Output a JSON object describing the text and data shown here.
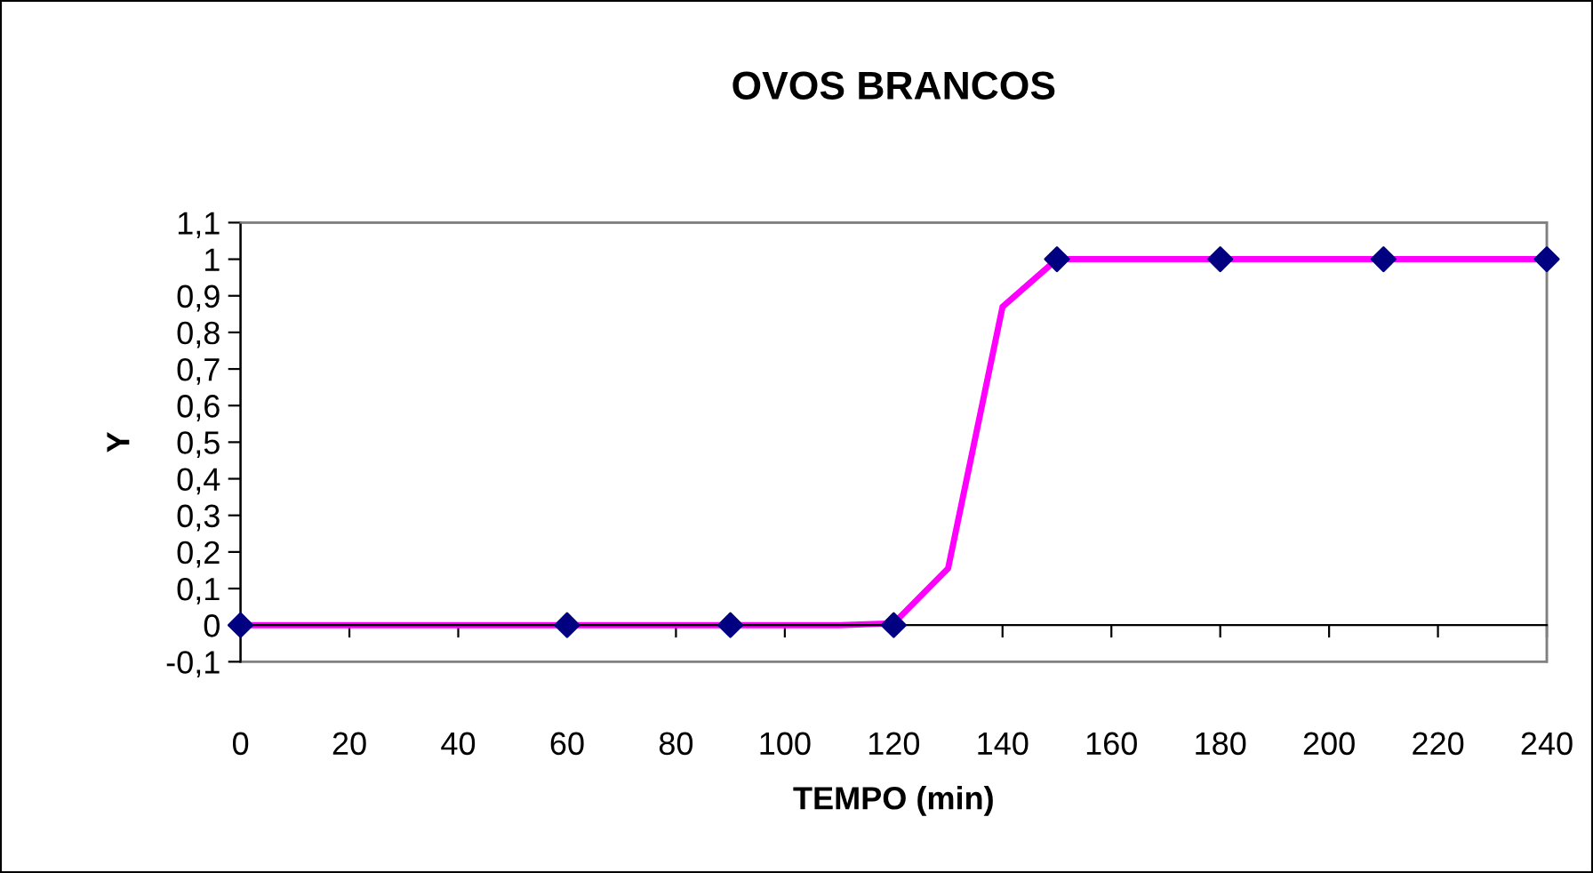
{
  "chart_data": {
    "type": "line",
    "title": "OVOS BRANCOS",
    "xlabel": "TEMPO (min)",
    "ylabel": "Y",
    "series": [
      {
        "color": "#ff00ff",
        "marker": "none",
        "line_style": "solid",
        "x": [
          0,
          10,
          20,
          30,
          40,
          50,
          60,
          70,
          80,
          90,
          100,
          110,
          120,
          130,
          140,
          150,
          160,
          170,
          180,
          190,
          200,
          210,
          220,
          230,
          240
        ],
        "values": [
          0,
          0,
          0,
          0,
          0,
          0,
          0,
          0,
          0,
          0,
          0,
          0,
          0.005,
          0.155,
          0.87,
          1,
          1,
          1,
          1,
          1,
          1,
          1,
          1,
          1,
          1
        ]
      },
      {
        "type": "scatter",
        "color": "#000080",
        "marker": "diamond",
        "x": [
          0,
          60,
          90,
          120,
          150,
          180,
          210,
          240
        ],
        "values": [
          0,
          0,
          0,
          0,
          1,
          1,
          1,
          1
        ]
      }
    ],
    "xlim": [
      0,
      240
    ],
    "xticks": [
      0,
      20,
      40,
      60,
      80,
      100,
      120,
      140,
      160,
      180,
      200,
      220,
      240
    ],
    "ylim": [
      -0.1,
      1.1
    ],
    "yticks": [
      {
        "value": -0.1,
        "label": "-0,1"
      },
      0,
      {
        "value": 0.1,
        "label": "0,1"
      },
      {
        "value": 0.2,
        "label": "0,2"
      },
      {
        "value": 0.3,
        "label": "0,3"
      },
      {
        "value": 0.4,
        "label": "0,4"
      },
      {
        "value": 0.5,
        "label": "0,5"
      },
      {
        "value": 0.6,
        "label": "0,6"
      },
      {
        "value": 0.7,
        "label": "0,7"
      },
      {
        "value": 0.8,
        "label": "0,8"
      },
      {
        "value": 0.9,
        "label": "0,9"
      },
      1,
      {
        "value": 1.1,
        "label": "1,1"
      }
    ],
    "legend": false
  }
}
